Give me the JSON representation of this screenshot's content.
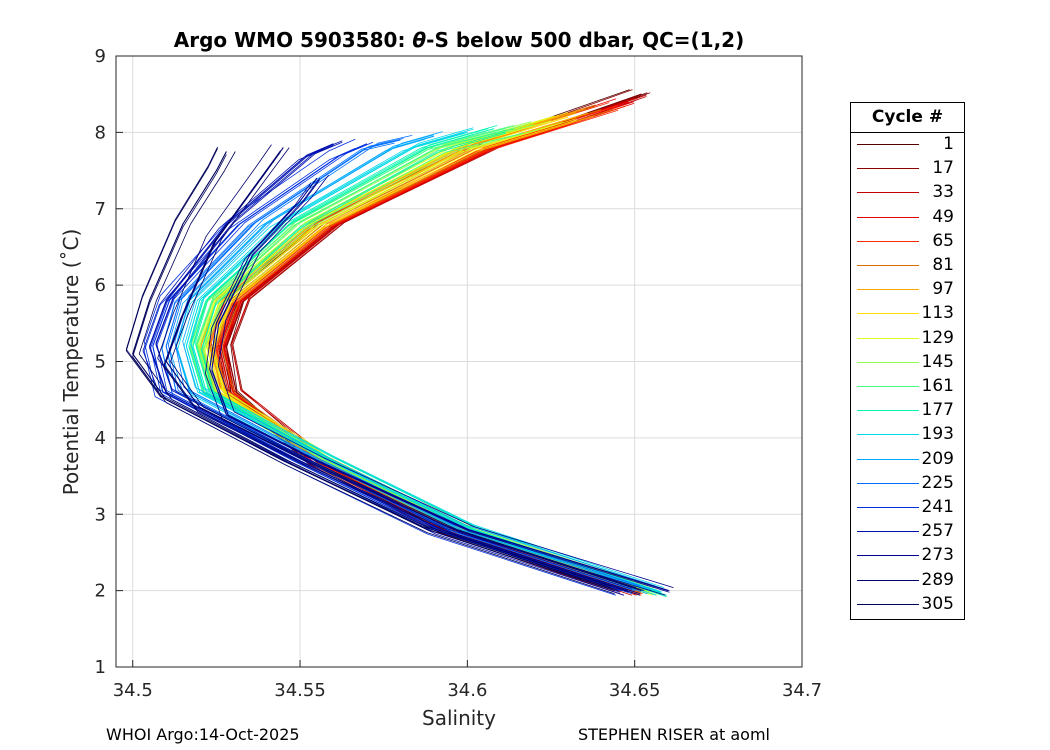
{
  "chart_data": {
    "type": "line",
    "title_prefix": "Argo WMO 5903580: ",
    "title_symbol": "θ",
    "title_suffix": "-S below 500 dbar,  QC=(1,2)",
    "xlabel": "Salinity",
    "ylabel": "Potential Temperature (˚C)",
    "xlim": [
      34.495,
      34.7
    ],
    "ylim": [
      1,
      9
    ],
    "xticks": [
      "34.5",
      "34.55",
      "34.6",
      "34.65",
      "34.7"
    ],
    "xtick_values": [
      34.5,
      34.55,
      34.6,
      34.65,
      34.7
    ],
    "yticks": [
      "1",
      "2",
      "3",
      "4",
      "5",
      "6",
      "7",
      "8",
      "9"
    ],
    "ytick_values": [
      1,
      2,
      3,
      4,
      5,
      6,
      7,
      8,
      9
    ],
    "grid": true,
    "legend_title": "Cycle #",
    "legend": [
      {
        "label": "1",
        "color": "#550000"
      },
      {
        "label": "17",
        "color": "#8b0000"
      },
      {
        "label": "33",
        "color": "#c20000"
      },
      {
        "label": "49",
        "color": "#e80000"
      },
      {
        "label": "65",
        "color": "#ff2a00"
      },
      {
        "label": "81",
        "color": "#d87000"
      },
      {
        "label": "97",
        "color": "#ffa800"
      },
      {
        "label": "113",
        "color": "#ffe000"
      },
      {
        "label": "129",
        "color": "#d8ff20"
      },
      {
        "label": "145",
        "color": "#90ff50"
      },
      {
        "label": "161",
        "color": "#40ff80"
      },
      {
        "label": "177",
        "color": "#00f5b0"
      },
      {
        "label": "193",
        "color": "#00d8e8"
      },
      {
        "label": "209",
        "color": "#00a8ff"
      },
      {
        "label": "225",
        "color": "#0070ff"
      },
      {
        "label": "241",
        "color": "#0030e0"
      },
      {
        "label": "257",
        "color": "#0010b0"
      },
      {
        "label": "273",
        "color": "#000090"
      },
      {
        "label": "289",
        "color": "#000070"
      },
      {
        "label": "305",
        "color": "#00005a"
      }
    ],
    "series": [
      {
        "name": "1",
        "x": [
          34.646,
          34.592,
          34.553,
          34.53,
          34.528,
          34.532,
          34.56,
          34.606,
          34.652
        ],
        "y": [
          2.0,
          2.8,
          3.7,
          4.6,
          5.2,
          5.8,
          6.8,
          7.8,
          8.5
        ]
      },
      {
        "name": "17",
        "x": [
          34.648,
          34.594,
          34.555,
          34.531,
          34.528,
          34.533,
          34.561,
          34.607,
          34.652
        ],
        "y": [
          2.0,
          2.8,
          3.7,
          4.6,
          5.2,
          5.8,
          6.8,
          7.8,
          8.5
        ]
      },
      {
        "name": "33",
        "x": [
          34.65,
          34.595,
          34.556,
          34.53,
          34.527,
          34.532,
          34.56,
          34.607,
          34.65
        ],
        "y": [
          2.0,
          2.8,
          3.7,
          4.6,
          5.2,
          5.8,
          6.8,
          7.8,
          8.45
        ]
      },
      {
        "name": "49",
        "x": [
          34.651,
          34.596,
          34.556,
          34.529,
          34.526,
          34.531,
          34.559,
          34.606,
          34.648
        ],
        "y": [
          2.0,
          2.8,
          3.7,
          4.6,
          5.2,
          5.8,
          6.8,
          7.8,
          8.4
        ]
      },
      {
        "name": "65",
        "x": [
          34.652,
          34.597,
          34.557,
          34.528,
          34.525,
          34.53,
          34.558,
          34.605,
          34.645
        ],
        "y": [
          2.0,
          2.8,
          3.7,
          4.6,
          5.2,
          5.8,
          6.8,
          7.8,
          8.35
        ]
      },
      {
        "name": "81",
        "x": [
          34.652,
          34.597,
          34.557,
          34.528,
          34.524,
          34.529,
          34.557,
          34.603,
          34.64
        ],
        "y": [
          2.0,
          2.8,
          3.7,
          4.6,
          5.2,
          5.8,
          6.8,
          7.8,
          8.3
        ]
      },
      {
        "name": "97",
        "x": [
          34.653,
          34.598,
          34.558,
          34.527,
          34.523,
          34.528,
          34.556,
          34.602,
          34.636
        ],
        "y": [
          2.0,
          2.8,
          3.7,
          4.6,
          5.2,
          5.8,
          6.8,
          7.8,
          8.25
        ]
      },
      {
        "name": "113",
        "x": [
          34.654,
          34.599,
          34.558,
          34.526,
          34.522,
          34.527,
          34.555,
          34.6,
          34.63
        ],
        "y": [
          2.0,
          2.8,
          3.7,
          4.6,
          5.2,
          5.8,
          6.8,
          7.8,
          8.2
        ]
      },
      {
        "name": "129",
        "x": [
          34.655,
          34.6,
          34.559,
          34.525,
          34.521,
          34.526,
          34.553,
          34.597,
          34.625
        ],
        "y": [
          2.0,
          2.8,
          3.7,
          4.6,
          5.2,
          5.8,
          6.8,
          7.8,
          8.15
        ]
      },
      {
        "name": "145",
        "x": [
          34.656,
          34.601,
          34.559,
          34.524,
          34.52,
          34.525,
          34.551,
          34.594,
          34.62
        ],
        "y": [
          2.0,
          2.8,
          3.7,
          4.6,
          5.2,
          5.8,
          6.8,
          7.8,
          8.1
        ]
      },
      {
        "name": "161",
        "x": [
          34.657,
          34.602,
          34.56,
          34.523,
          34.519,
          34.524,
          34.549,
          34.591,
          34.614
        ],
        "y": [
          2.0,
          2.8,
          3.7,
          4.6,
          5.2,
          5.8,
          6.8,
          7.8,
          8.05
        ]
      },
      {
        "name": "177",
        "x": [
          34.658,
          34.602,
          34.56,
          34.522,
          34.518,
          34.522,
          34.547,
          34.588,
          34.608
        ],
        "y": [
          1.98,
          2.8,
          3.7,
          4.6,
          5.2,
          5.8,
          6.8,
          7.8,
          8.05
        ]
      },
      {
        "name": "193",
        "x": [
          34.658,
          34.601,
          34.559,
          34.52,
          34.516,
          34.52,
          34.544,
          34.584,
          34.6
        ],
        "y": [
          1.98,
          2.8,
          3.7,
          4.6,
          5.2,
          5.8,
          6.8,
          7.8,
          8.0
        ]
      },
      {
        "name": "209",
        "x": [
          34.655,
          34.598,
          34.556,
          34.517,
          34.513,
          34.517,
          34.54,
          34.578,
          34.59
        ],
        "y": [
          2.0,
          2.8,
          3.7,
          4.6,
          5.2,
          5.8,
          6.8,
          7.8,
          7.95
        ]
      },
      {
        "name": "225",
        "x": [
          34.65,
          34.594,
          34.552,
          34.513,
          34.51,
          34.514,
          34.536,
          34.57,
          34.58
        ],
        "y": [
          2.0,
          2.8,
          3.7,
          4.6,
          5.2,
          5.8,
          6.8,
          7.8,
          7.9
        ]
      },
      {
        "name": "241",
        "x": [
          34.646,
          34.59,
          34.548,
          34.509,
          34.506,
          34.511,
          34.532,
          34.562,
          34.57
        ],
        "y": [
          2.0,
          2.8,
          3.7,
          4.6,
          5.2,
          5.8,
          6.8,
          7.7,
          7.85
        ]
      },
      {
        "name": "257",
        "x": [
          34.648,
          34.592,
          34.55,
          34.51,
          34.505,
          34.51,
          34.528,
          34.552,
          34.56
        ],
        "y": [
          2.0,
          2.8,
          3.7,
          4.6,
          5.2,
          5.8,
          6.8,
          7.7,
          7.85
        ]
      },
      {
        "name": "273",
        "x": [
          34.66,
          34.6,
          34.555,
          34.528,
          34.523,
          34.525,
          34.535,
          34.55,
          34.555
        ],
        "y": [
          2.0,
          2.8,
          3.7,
          4.3,
          4.9,
          5.5,
          6.4,
          7.1,
          7.4
        ]
      },
      {
        "name": "289",
        "x": [
          34.652,
          34.596,
          34.552,
          34.52,
          34.51,
          34.515,
          34.525,
          34.54,
          34.545
        ],
        "y": [
          2.0,
          2.8,
          3.7,
          4.4,
          5.0,
          5.6,
          6.6,
          7.5,
          7.8
        ]
      },
      {
        "name": "305",
        "x": [
          34.644,
          34.588,
          34.545,
          34.51,
          34.5,
          34.505,
          34.515,
          34.525,
          34.528
        ],
        "y": [
          2.0,
          2.8,
          3.7,
          4.5,
          5.1,
          5.8,
          6.8,
          7.5,
          7.75
        ]
      }
    ]
  },
  "footer": {
    "left": "WHOI Argo:14-Oct-2025",
    "right": "STEPHEN RISER at aoml"
  }
}
